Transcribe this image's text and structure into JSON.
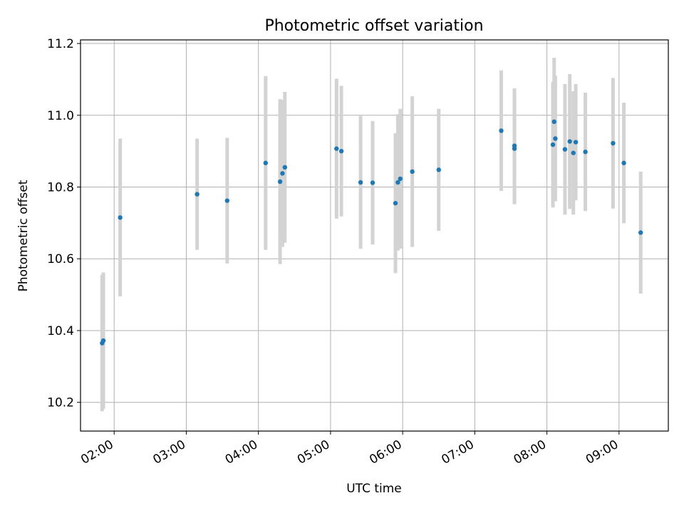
{
  "chart_data": {
    "type": "scatter",
    "title": "Photometric offset variation",
    "xlabel": "UTC time",
    "ylabel": "Photometric offset",
    "x_tick_labels": [
      "02:00",
      "03:00",
      "04:00",
      "05:00",
      "06:00",
      "07:00",
      "08:00",
      "09:00"
    ],
    "y_tick_labels": [
      "10.2",
      "10.4",
      "10.6",
      "10.8",
      "11.0",
      "11.2"
    ],
    "xlim": [
      "01:32",
      "09:41"
    ],
    "ylim": [
      10.12,
      11.21
    ],
    "grid": true,
    "marker_color": "#1f77b4",
    "errorbar_color": "#d3d3d3",
    "points": [
      {
        "x": "01:50",
        "y": 10.365,
        "err": 0.19
      },
      {
        "x": "01:51",
        "y": 10.372,
        "err": 0.19
      },
      {
        "x": "02:05",
        "y": 10.715,
        "err": 0.22
      },
      {
        "x": "03:09",
        "y": 10.78,
        "err": 0.155
      },
      {
        "x": "03:34",
        "y": 10.762,
        "err": 0.175
      },
      {
        "x": "04:06",
        "y": 10.867,
        "err": 0.242
      },
      {
        "x": "04:18",
        "y": 10.815,
        "err": 0.23
      },
      {
        "x": "04:20",
        "y": 10.838,
        "err": 0.205
      },
      {
        "x": "04:22",
        "y": 10.855,
        "err": 0.21
      },
      {
        "x": "05:05",
        "y": 10.907,
        "err": 0.195
      },
      {
        "x": "05:09",
        "y": 10.9,
        "err": 0.182
      },
      {
        "x": "05:25",
        "y": 10.813,
        "err": 0.185
      },
      {
        "x": "05:35",
        "y": 10.812,
        "err": 0.172
      },
      {
        "x": "05:54",
        "y": 10.755,
        "err": 0.195
      },
      {
        "x": "05:56",
        "y": 10.813,
        "err": 0.19
      },
      {
        "x": "05:58",
        "y": 10.823,
        "err": 0.195
      },
      {
        "x": "06:08",
        "y": 10.843,
        "err": 0.21
      },
      {
        "x": "06:30",
        "y": 10.848,
        "err": 0.17
      },
      {
        "x": "07:22",
        "y": 10.957,
        "err": 0.168
      },
      {
        "x": "07:33",
        "y": 10.907,
        "err": 0.155
      },
      {
        "x": "07:33",
        "y": 10.915,
        "err": 0.16
      },
      {
        "x": "08:05",
        "y": 10.918,
        "err": 0.175
      },
      {
        "x": "08:06",
        "y": 10.982,
        "err": 0.178
      },
      {
        "x": "08:07",
        "y": 10.935,
        "err": 0.175
      },
      {
        "x": "08:15",
        "y": 10.905,
        "err": 0.182
      },
      {
        "x": "08:19",
        "y": 10.927,
        "err": 0.188
      },
      {
        "x": "08:22",
        "y": 10.895,
        "err": 0.172
      },
      {
        "x": "08:24",
        "y": 10.925,
        "err": 0.162
      },
      {
        "x": "08:32",
        "y": 10.898,
        "err": 0.165
      },
      {
        "x": "08:55",
        "y": 10.922,
        "err": 0.182
      },
      {
        "x": "09:04",
        "y": 10.867,
        "err": 0.168
      },
      {
        "x": "09:18",
        "y": 10.673,
        "err": 0.17
      }
    ]
  }
}
